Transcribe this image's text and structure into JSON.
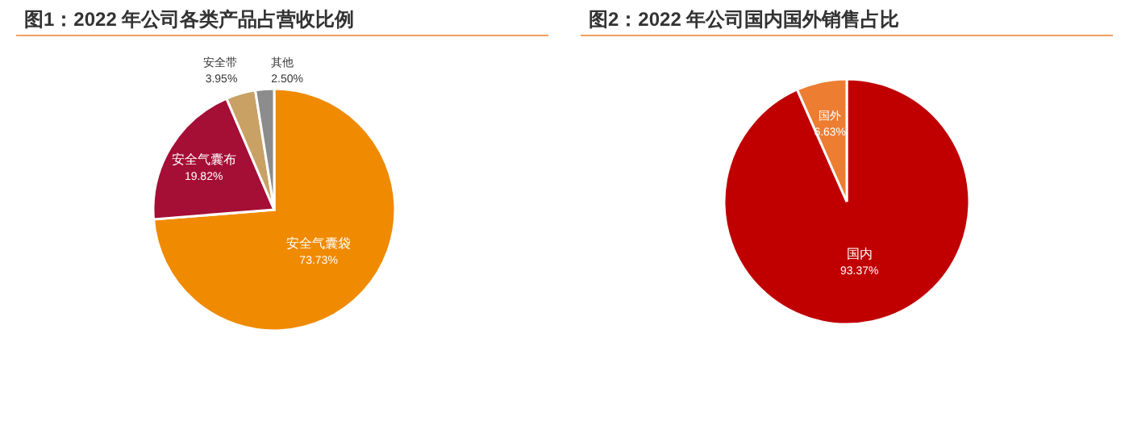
{
  "chart_data": [
    {
      "type": "pie",
      "title": "图1：2022 年公司各类产品占营收比例",
      "categories": [
        "安全气囊袋",
        "安全气囊布",
        "安全带",
        "其他"
      ],
      "values": [
        73.73,
        19.82,
        3.95,
        2.5
      ],
      "colors": [
        "#f08a00",
        "#a50e35",
        "#c9a165",
        "#8c8c8c"
      ],
      "value_labels": [
        "73.73%",
        "19.82%",
        "3.95%",
        "2.50%"
      ]
    },
    {
      "type": "pie",
      "title": "图2：2022 年公司国内国外销售占比",
      "categories": [
        "国内",
        "国外"
      ],
      "values": [
        93.37,
        6.63
      ],
      "colors": [
        "#c00000",
        "#ed7d31"
      ],
      "value_labels": [
        "93.37%",
        "6.63%"
      ]
    }
  ]
}
